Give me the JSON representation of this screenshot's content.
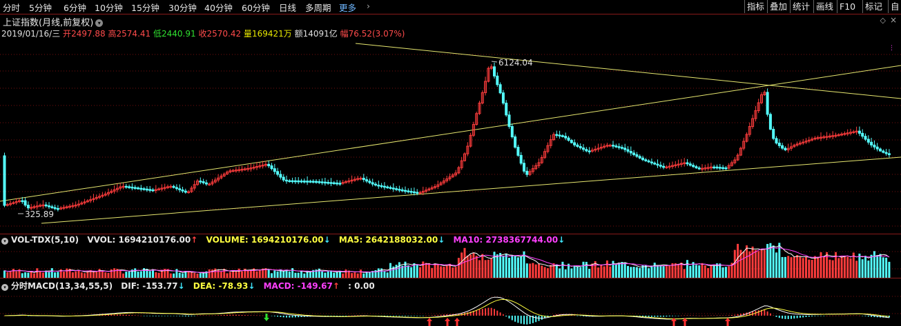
{
  "toolbar": {
    "periods": [
      "分时",
      "5分钟",
      "6分钟",
      "10分钟",
      "15分钟",
      "30分钟",
      "40分钟",
      "60分钟",
      "日线",
      "多周期"
    ],
    "more": "更多",
    "right_buttons": [
      "指标",
      "叠加",
      "统计",
      "画线",
      "F10",
      "标记",
      "自"
    ]
  },
  "title": "上证指数(月线,前复权)",
  "quote": {
    "date": "2019/01/16/三",
    "open_label": "开",
    "open": "2497.88",
    "high_label": "高",
    "high": "2574.41",
    "low_label": "低",
    "low": "2440.91",
    "close_label": "收",
    "close": "2570.42",
    "vol_label": "量",
    "vol": "169421万",
    "amount_label": "额",
    "amount": "14091亿",
    "range_label": "幅",
    "range": "76.52(3.07%)"
  },
  "annotations": {
    "high": "6124.04",
    "low": "325.89"
  },
  "vol_panel": {
    "name": "VOL-TDX(5,10)",
    "vvol": "VVOL: 1694210176.00",
    "volume": "VOLUME: 1694210176.00",
    "ma5": "MA5: 2642188032.00",
    "ma10": "MA10: 2738367744.00"
  },
  "macd_panel": {
    "name": "分时MACD(13,34,55,5)",
    "dif": "DIF: -153.77",
    "dea": "DEA: -78.93",
    "macd": "MACD: -149.67",
    "extra": ": 0.00"
  },
  "colors": {
    "up": "#ff3c3c",
    "down": "#54ffff",
    "trend": "#e8e870",
    "ma5": "#ffffff",
    "ma10": "#ff40ff",
    "grid": "#7a1010"
  }
}
